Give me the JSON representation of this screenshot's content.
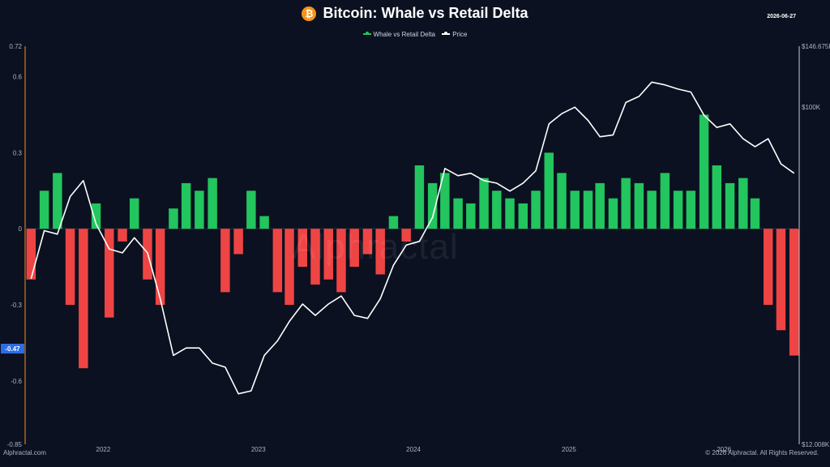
{
  "header": {
    "title": "Bitcoin: Whale vs Retail Delta",
    "date": "2026-06-27",
    "icon": "bitcoin-icon"
  },
  "legend": [
    {
      "label": "Whale vs Retail Delta",
      "color": "#22c55e"
    },
    {
      "label": "Price",
      "color": "#ffffff"
    }
  ],
  "footer": {
    "source": "Alphractal.com",
    "copyright": "© 2026 Alphractal. All Rights Reserved."
  },
  "watermark": "Alphractal",
  "current_value_badge": "-0.47",
  "colors": {
    "positive": "#22c55e",
    "negative": "#ef4444",
    "price": "#ffffff",
    "background": "#0b1120",
    "badge": "#2b6de6"
  },
  "chart_data": {
    "type": "bar",
    "x_range": [
      "2021-07-01",
      "2026-06-27"
    ],
    "x_ticks": [
      {
        "label": "2022",
        "date": "2022-01-01"
      },
      {
        "label": "2023",
        "date": "2023-01-01"
      },
      {
        "label": "2024",
        "date": "2024-01-01"
      },
      {
        "label": "2025",
        "date": "2025-01-01"
      },
      {
        "label": "2026",
        "date": "2026-01-01"
      }
    ],
    "y_left": {
      "range": [
        -0.85,
        0.72
      ],
      "ticks": [
        0.72,
        0.6,
        0.3,
        0,
        -0.3,
        -0.6,
        -0.85
      ]
    },
    "y_right": {
      "range": [
        12008,
        146675
      ],
      "scale": "log",
      "tick_labels": [
        "$146.675K",
        "$100K",
        "$12.008K"
      ],
      "tick_values": [
        146675,
        100000,
        12008
      ]
    },
    "series": [
      {
        "name": "Whale vs Retail Delta",
        "type": "bar",
        "x": [
          "2021-07",
          "2021-08",
          "2021-09",
          "2021-10",
          "2021-11",
          "2021-12",
          "2022-01",
          "2022-02",
          "2022-03",
          "2022-04",
          "2022-05",
          "2022-06",
          "2022-07",
          "2022-08",
          "2022-09",
          "2022-10",
          "2022-11",
          "2022-12",
          "2023-01",
          "2023-02",
          "2023-03",
          "2023-04",
          "2023-05",
          "2023-06",
          "2023-07",
          "2023-08",
          "2023-09",
          "2023-10",
          "2023-11",
          "2023-12",
          "2024-01",
          "2024-02",
          "2024-03",
          "2024-04",
          "2024-05",
          "2024-06",
          "2024-07",
          "2024-08",
          "2024-09",
          "2024-10",
          "2024-11",
          "2024-12",
          "2025-01",
          "2025-02",
          "2025-03",
          "2025-04",
          "2025-05",
          "2025-06",
          "2025-07",
          "2025-08",
          "2025-09",
          "2025-10",
          "2025-11",
          "2025-12",
          "2026-01",
          "2026-02",
          "2026-03",
          "2026-04",
          "2026-05",
          "2026-06"
        ],
        "values": [
          -0.2,
          0.15,
          0.22,
          -0.3,
          -0.55,
          0.1,
          -0.35,
          -0.05,
          0.12,
          -0.2,
          -0.3,
          0.08,
          0.18,
          0.15,
          0.2,
          -0.25,
          -0.1,
          0.15,
          0.05,
          -0.25,
          -0.3,
          -0.15,
          -0.22,
          -0.2,
          -0.25,
          -0.15,
          -0.1,
          -0.18,
          0.05,
          -0.05,
          0.25,
          0.18,
          0.22,
          0.12,
          0.1,
          0.2,
          0.15,
          0.12,
          0.1,
          0.15,
          0.3,
          0.22,
          0.15,
          0.15,
          0.18,
          0.12,
          0.2,
          0.18,
          0.15,
          0.22,
          0.15,
          0.15,
          0.45,
          0.25,
          0.18,
          0.2,
          0.12,
          -0.3,
          -0.4,
          -0.5
        ]
      },
      {
        "name": "Price",
        "type": "line",
        "x": [
          "2021-07",
          "2021-08",
          "2021-09",
          "2021-10",
          "2021-11",
          "2021-12",
          "2022-01",
          "2022-02",
          "2022-03",
          "2022-04",
          "2022-05",
          "2022-06",
          "2022-07",
          "2022-08",
          "2022-09",
          "2022-10",
          "2022-11",
          "2022-12",
          "2023-01",
          "2023-02",
          "2023-03",
          "2023-04",
          "2023-05",
          "2023-06",
          "2023-07",
          "2023-08",
          "2023-09",
          "2023-10",
          "2023-11",
          "2023-12",
          "2024-01",
          "2024-02",
          "2024-03",
          "2024-04",
          "2024-05",
          "2024-06",
          "2024-07",
          "2024-08",
          "2024-09",
          "2024-10",
          "2024-11",
          "2024-12",
          "2025-01",
          "2025-02",
          "2025-03",
          "2025-04",
          "2025-05",
          "2025-06",
          "2025-07",
          "2025-08",
          "2025-09",
          "2025-10",
          "2025-11",
          "2025-12",
          "2026-01",
          "2026-02",
          "2026-03",
          "2026-04",
          "2026-05",
          "2026-06"
        ],
        "values": [
          34000,
          46000,
          45000,
          57000,
          63000,
          48000,
          41000,
          40000,
          44000,
          40000,
          30000,
          21000,
          22000,
          22000,
          20000,
          19500,
          16500,
          16800,
          21000,
          23000,
          26000,
          29000,
          27000,
          29000,
          30500,
          27000,
          26500,
          30000,
          37000,
          42000,
          43000,
          50000,
          68000,
          65000,
          66000,
          63000,
          62000,
          59000,
          62000,
          67000,
          90000,
          96000,
          100000,
          92000,
          83000,
          84000,
          103000,
          107000,
          117000,
          115000,
          112000,
          110000,
          95000,
          88000,
          90000,
          82000,
          78000,
          82000,
          70000,
          66000
        ]
      }
    ]
  }
}
